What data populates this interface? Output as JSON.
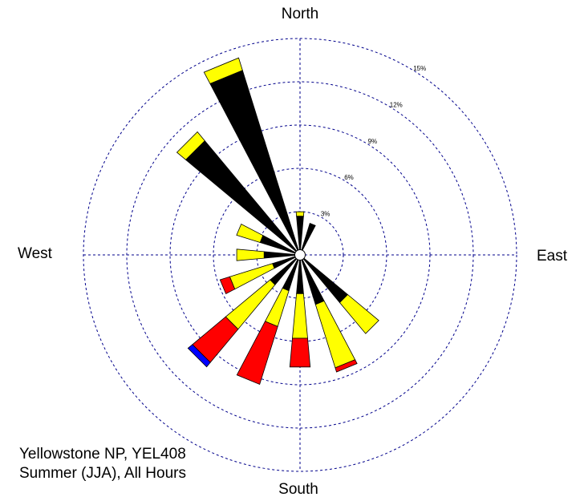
{
  "chart_data": {
    "type": "wind-rose",
    "direction_labels": {
      "north": "North",
      "east": "East",
      "south": "South",
      "west": "West"
    },
    "ring_labels": [
      "3%",
      "6%",
      "9%",
      "12%",
      "15%"
    ],
    "ring_values": [
      3,
      6,
      9,
      12,
      15
    ],
    "rmax": 15,
    "grid": true,
    "colors": {
      "grid": "#00008b",
      "bands": [
        "#000000",
        "#ffff00",
        "#ff0000",
        "#0000ff"
      ],
      "outline": "#000000"
    },
    "sectors": [
      {
        "direction": 0,
        "cumulative": [
          2.7,
          3.0
        ]
      },
      {
        "direction": 22.5,
        "cumulative": [
          2.3
        ]
      },
      {
        "direction": 45,
        "cumulative": [
          0.3
        ]
      },
      {
        "direction": 67.5,
        "cumulative": [
          0.2
        ]
      },
      {
        "direction": 90,
        "cumulative": [
          0.2
        ]
      },
      {
        "direction": 112.5,
        "cumulative": [
          0.2
        ]
      },
      {
        "direction": 135,
        "cumulative": [
          4.3,
          7.1
        ]
      },
      {
        "direction": 157.5,
        "cumulative": [
          3.6,
          8.2,
          8.5
        ]
      },
      {
        "direction": 180,
        "cumulative": [
          2.7,
          5.8,
          7.8
        ]
      },
      {
        "direction": 202.5,
        "cumulative": [
          2.6,
          5.2,
          9.4
        ]
      },
      {
        "direction": 225,
        "cumulative": [
          2.7,
          6.7,
          9.7,
          10.1
        ]
      },
      {
        "direction": 247.5,
        "cumulative": [
          2.0,
          5.1,
          5.8
        ]
      },
      {
        "direction": 270,
        "cumulative": [
          2.5,
          4.4
        ]
      },
      {
        "direction": 292.5,
        "cumulative": [
          2.9,
          4.6
        ]
      },
      {
        "direction": 315,
        "cumulative": [
          10.3,
          11.1
        ]
      },
      {
        "direction": 337.5,
        "cumulative": [
          13.4,
          14.3
        ]
      }
    ]
  },
  "caption": {
    "line1": "Yellowstone NP, YEL408",
    "line2": "Summer (JJA), All Hours"
  }
}
